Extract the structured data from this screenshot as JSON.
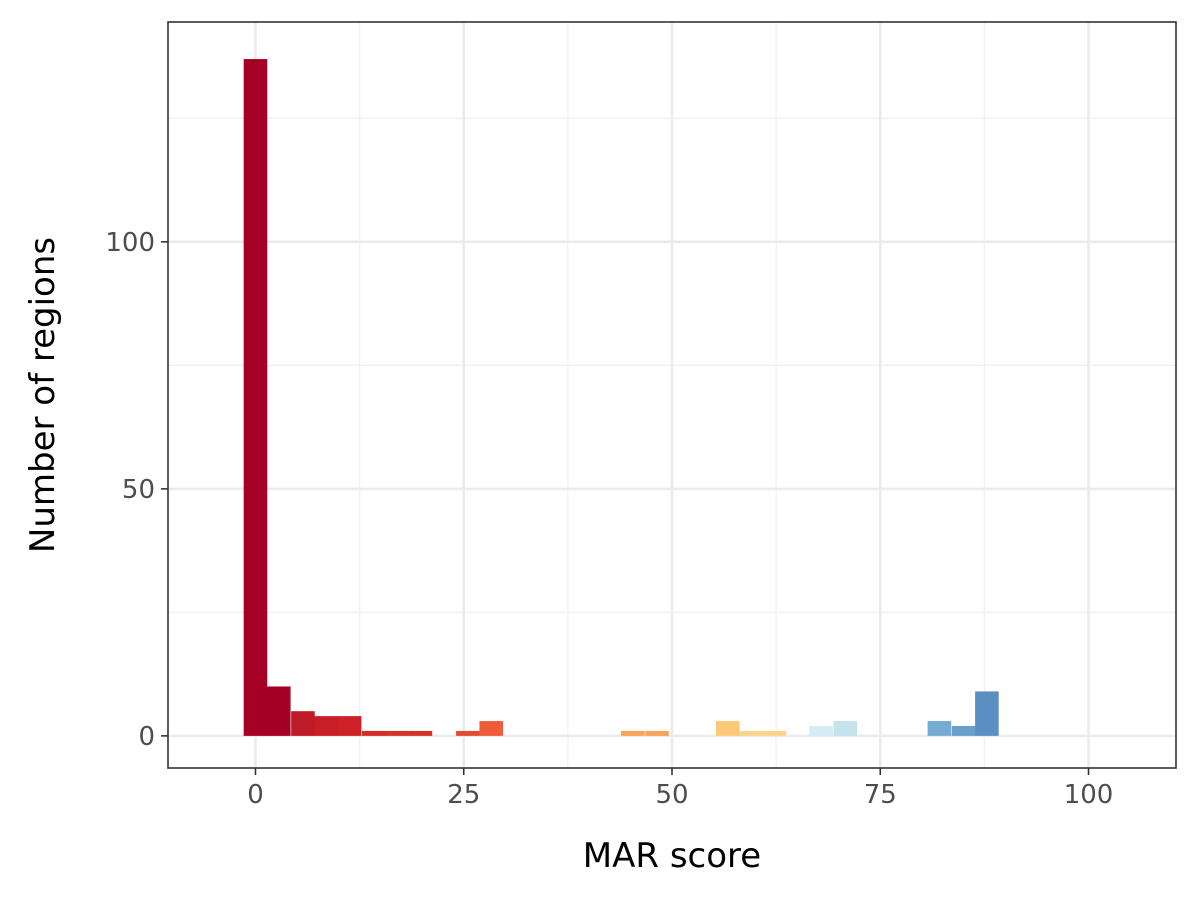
{
  "chart_data": {
    "type": "bar",
    "title": "",
    "xlabel": "MAR score",
    "ylabel": "Number of regions",
    "xlim": [
      -10.5,
      110.5
    ],
    "ylim": [
      -6.5,
      144.5
    ],
    "grid": true,
    "x_ticks": [
      0,
      25,
      50,
      75,
      100
    ],
    "y_ticks": [
      0,
      50,
      100
    ],
    "bin_width": 2.83,
    "bins": [
      {
        "x": 0.0,
        "count": 137,
        "color": "#a50026"
      },
      {
        "x": 2.8,
        "count": 10,
        "color": "#a50026"
      },
      {
        "x": 5.7,
        "count": 5,
        "color": "#bf1b27"
      },
      {
        "x": 8.5,
        "count": 4,
        "color": "#c81e27"
      },
      {
        "x": 11.3,
        "count": 4,
        "color": "#cf2027"
      },
      {
        "x": 14.2,
        "count": 1,
        "color": "#d32b26"
      },
      {
        "x": 17.0,
        "count": 1,
        "color": "#d73027"
      },
      {
        "x": 19.8,
        "count": 1,
        "color": "#d73027"
      },
      {
        "x": 25.5,
        "count": 1,
        "color": "#e34a33"
      },
      {
        "x": 28.3,
        "count": 3,
        "color": "#f05b3a"
      },
      {
        "x": 45.3,
        "count": 1,
        "color": "#fba35a"
      },
      {
        "x": 48.2,
        "count": 1,
        "color": "#fba35a"
      },
      {
        "x": 56.7,
        "count": 3,
        "color": "#fdc878"
      },
      {
        "x": 59.5,
        "count": 1,
        "color": "#fed48a"
      },
      {
        "x": 62.3,
        "count": 1,
        "color": "#fed48a"
      },
      {
        "x": 67.9,
        "count": 2,
        "color": "#d4edf4"
      },
      {
        "x": 70.8,
        "count": 3,
        "color": "#c4e3ef"
      },
      {
        "x": 82.1,
        "count": 3,
        "color": "#74add1"
      },
      {
        "x": 85.0,
        "count": 2,
        "color": "#6a9ecb"
      },
      {
        "x": 87.8,
        "count": 9,
        "color": "#5b8ec3"
      }
    ],
    "colors": {
      "panel_background": "#ffffff",
      "grid_major": "#ebebeb",
      "grid_minor": "#f2f2f2",
      "panel_border": "#333333"
    }
  }
}
